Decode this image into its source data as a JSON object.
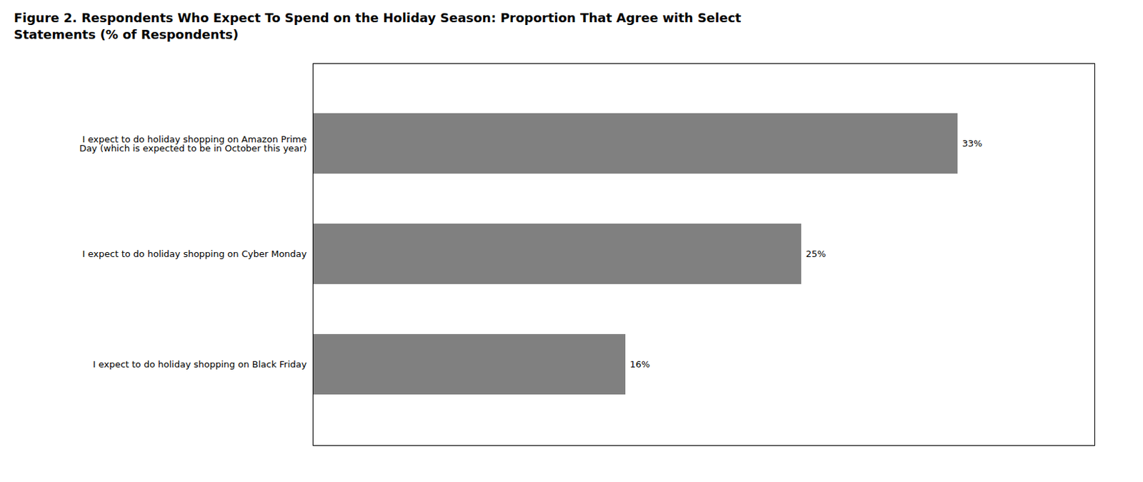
{
  "chart_data": {
    "type": "bar",
    "orientation": "horizontal",
    "title": "Figure 2. Respondents Who Expect To Spend on the Holiday Season: Proportion That Agree with Select\nStatements (% of Respondents)",
    "categories": [
      "I expect to do holiday shopping on Black Friday",
      "I expect to do holiday shopping on Cyber Monday",
      "I expect to do holiday shopping on Amazon Prime\nDay (which is expected to be in October this year)"
    ],
    "values": [
      16,
      25,
      33
    ],
    "value_labels": [
      "16%",
      "25%",
      "33%"
    ],
    "data_labels": true,
    "color": "#808080",
    "xlim": [
      0,
      40
    ],
    "tick_labels": "y",
    "grid": false
  }
}
